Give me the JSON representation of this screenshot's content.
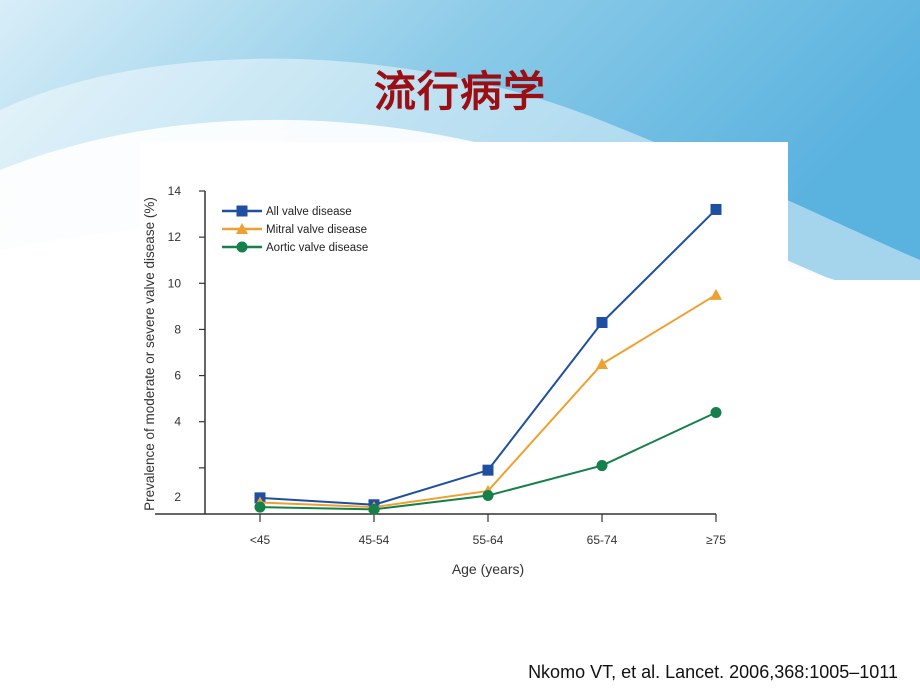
{
  "slide": {
    "title": "流行病学",
    "citation": "Nkomo VT, et al. Lancet. 2006,368:1005–1011"
  },
  "chart_data": {
    "type": "line",
    "title": "",
    "xlabel": "Age (years)",
    "ylabel": "Prevalence of moderate or severe valve disease (%)",
    "categories": [
      "<45",
      "45-54",
      "55-64",
      "65-74",
      "≥75"
    ],
    "ylim": [
      0,
      14
    ],
    "yticks": [
      2,
      4,
      6,
      8,
      10,
      12,
      14
    ],
    "ytick_labels": [
      "2",
      "4",
      "6",
      "8",
      "10",
      "12",
      "14"
    ],
    "grid": false,
    "legend_position": "top-left",
    "series": [
      {
        "name": "All valve disease",
        "values": [
          0.7,
          0.4,
          1.9,
          8.3,
          13.2
        ],
        "color": "#1f4fa0",
        "marker": "square"
      },
      {
        "name": "Mitral valve disease",
        "values": [
          0.5,
          0.3,
          1.0,
          6.5,
          9.5
        ],
        "color": "#f0a030",
        "marker": "triangle"
      },
      {
        "name": "Aortic valve disease",
        "values": [
          0.3,
          0.2,
          0.8,
          2.1,
          4.4
        ],
        "color": "#15804a",
        "marker": "circle"
      }
    ]
  }
}
